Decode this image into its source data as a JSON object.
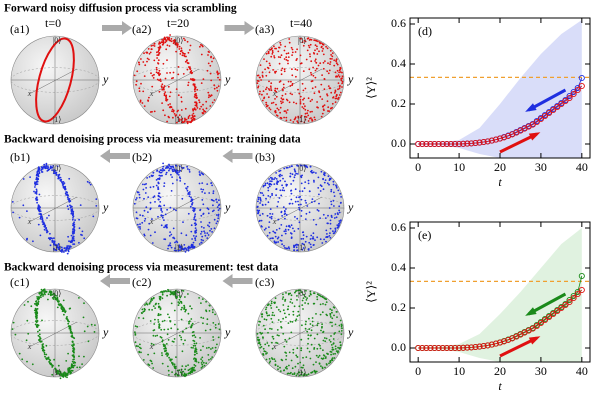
{
  "figure": {
    "rows": [
      {
        "title": "Forward noisy diffusion process via scrambling",
        "panels": [
          {
            "label": "(a1)",
            "time": "t=0"
          },
          {
            "label": "(a2)",
            "time": "t=20"
          },
          {
            "label": "(a3)",
            "time": "t=40"
          }
        ]
      },
      {
        "title": "Backward denoising process via measurement: training data",
        "panels": [
          {
            "label": "(b1)"
          },
          {
            "label": "(b2)"
          },
          {
            "label": "(b3)"
          }
        ]
      },
      {
        "title": "Backward denoising process via measurement: test data",
        "panels": [
          {
            "label": "(c1)"
          },
          {
            "label": "(c2)"
          },
          {
            "label": "(c3)"
          }
        ]
      }
    ],
    "sphere_labels": {
      "top": "|0⟩",
      "bottom": "|1⟩",
      "x": "x",
      "y": "y"
    }
  },
  "chart_data": [
    {
      "type": "line",
      "title": "(d)",
      "xlabel": "t",
      "ylabel": "⟨Y⟩²",
      "x": [
        0,
        1,
        2,
        3,
        4,
        5,
        6,
        7,
        8,
        9,
        10,
        11,
        12,
        13,
        14,
        15,
        16,
        17,
        18,
        19,
        20,
        21,
        22,
        23,
        24,
        25,
        26,
        27,
        28,
        29,
        30,
        31,
        32,
        33,
        34,
        35,
        36,
        37,
        38,
        39,
        40
      ],
      "series": [
        {
          "color": "#1f2fe0",
          "values": [
            0,
            0,
            0,
            0,
            0,
            0,
            0,
            0,
            0,
            0,
            0,
            0.001,
            0.002,
            0.003,
            0.005,
            0.007,
            0.01,
            0.013,
            0.017,
            0.022,
            0.028,
            0.035,
            0.042,
            0.05,
            0.06,
            0.07,
            0.08,
            0.09,
            0.1,
            0.115,
            0.13,
            0.145,
            0.16,
            0.175,
            0.19,
            0.205,
            0.22,
            0.24,
            0.26,
            0.28,
            0.33
          ]
        },
        {
          "color": "#e01010",
          "values": [
            0,
            0,
            0,
            0,
            0,
            0,
            0,
            0,
            0,
            0,
            0,
            0.001,
            0.002,
            0.003,
            0.005,
            0.007,
            0.01,
            0.013,
            0.017,
            0.022,
            0.027,
            0.033,
            0.04,
            0.048,
            0.057,
            0.067,
            0.077,
            0.087,
            0.097,
            0.11,
            0.125,
            0.14,
            0.155,
            0.17,
            0.185,
            0.2,
            0.215,
            0.23,
            0.25,
            0.27,
            0.29
          ]
        }
      ],
      "band": {
        "color": "#c9cef6",
        "x": [
          0,
          5,
          10,
          15,
          20,
          25,
          30,
          35,
          40
        ],
        "upper": [
          0.003,
          0.005,
          0.02,
          0.08,
          0.2,
          0.33,
          0.45,
          0.55,
          0.62
        ],
        "lower": [
          0,
          -0.003,
          -0.02,
          -0.05,
          -0.07,
          -0.07,
          -0.07,
          -0.07,
          -0.07
        ]
      },
      "reference_line": {
        "value": 0.333,
        "color": "#f0a030"
      },
      "xlim": [
        -2,
        42
      ],
      "xticks": [
        0,
        10,
        20,
        30,
        40
      ],
      "ylim": [
        -0.07,
        0.63
      ],
      "yticks": [
        {
          "value": 0,
          "label": "0.0"
        },
        {
          "value": 0.2,
          "label": "0.2"
        },
        {
          "value": 0.4,
          "label": "0.4"
        },
        {
          "value": 0.6,
          "label": "0.6"
        }
      ]
    },
    {
      "type": "line",
      "title": "(e)",
      "xlabel": "t",
      "ylabel": "⟨Y⟩²",
      "x": [
        0,
        1,
        2,
        3,
        4,
        5,
        6,
        7,
        8,
        9,
        10,
        11,
        12,
        13,
        14,
        15,
        16,
        17,
        18,
        19,
        20,
        21,
        22,
        23,
        24,
        25,
        26,
        27,
        28,
        29,
        30,
        31,
        32,
        33,
        34,
        35,
        36,
        37,
        38,
        39,
        40
      ],
      "series": [
        {
          "color": "#1a8a1a",
          "values": [
            0,
            0,
            0,
            0,
            0,
            0,
            0,
            0,
            0,
            0,
            0,
            0.001,
            0.002,
            0.003,
            0.005,
            0.007,
            0.01,
            0.013,
            0.017,
            0.022,
            0.028,
            0.035,
            0.042,
            0.05,
            0.06,
            0.07,
            0.08,
            0.09,
            0.1,
            0.115,
            0.13,
            0.145,
            0.16,
            0.175,
            0.19,
            0.205,
            0.22,
            0.24,
            0.26,
            0.28,
            0.36
          ]
        },
        {
          "color": "#e01010",
          "values": [
            0,
            0,
            0,
            0,
            0,
            0,
            0,
            0,
            0,
            0,
            0,
            0.001,
            0.002,
            0.003,
            0.005,
            0.007,
            0.01,
            0.013,
            0.017,
            0.022,
            0.027,
            0.033,
            0.04,
            0.048,
            0.057,
            0.067,
            0.077,
            0.087,
            0.097,
            0.11,
            0.125,
            0.14,
            0.155,
            0.17,
            0.185,
            0.2,
            0.215,
            0.23,
            0.25,
            0.27,
            0.29
          ]
        }
      ],
      "band": {
        "color": "#d3ecd3",
        "x": [
          0,
          5,
          10,
          15,
          20,
          25,
          30,
          35,
          40
        ],
        "upper": [
          0.003,
          0.005,
          0.02,
          0.07,
          0.17,
          0.28,
          0.4,
          0.52,
          0.6
        ],
        "lower": [
          0,
          -0.003,
          -0.02,
          -0.05,
          -0.07,
          -0.07,
          -0.07,
          -0.07,
          -0.07
        ]
      },
      "reference_line": {
        "value": 0.333,
        "color": "#f0a030"
      },
      "xlim": [
        -2,
        42
      ],
      "xticks": [
        0,
        10,
        20,
        30,
        40
      ],
      "ylim": [
        -0.07,
        0.63
      ],
      "yticks": [
        {
          "value": 0,
          "label": "0.0"
        },
        {
          "value": 0.2,
          "label": "0.2"
        },
        {
          "value": 0.4,
          "label": "0.4"
        },
        {
          "value": 0.6,
          "label": "0.6"
        }
      ]
    }
  ]
}
